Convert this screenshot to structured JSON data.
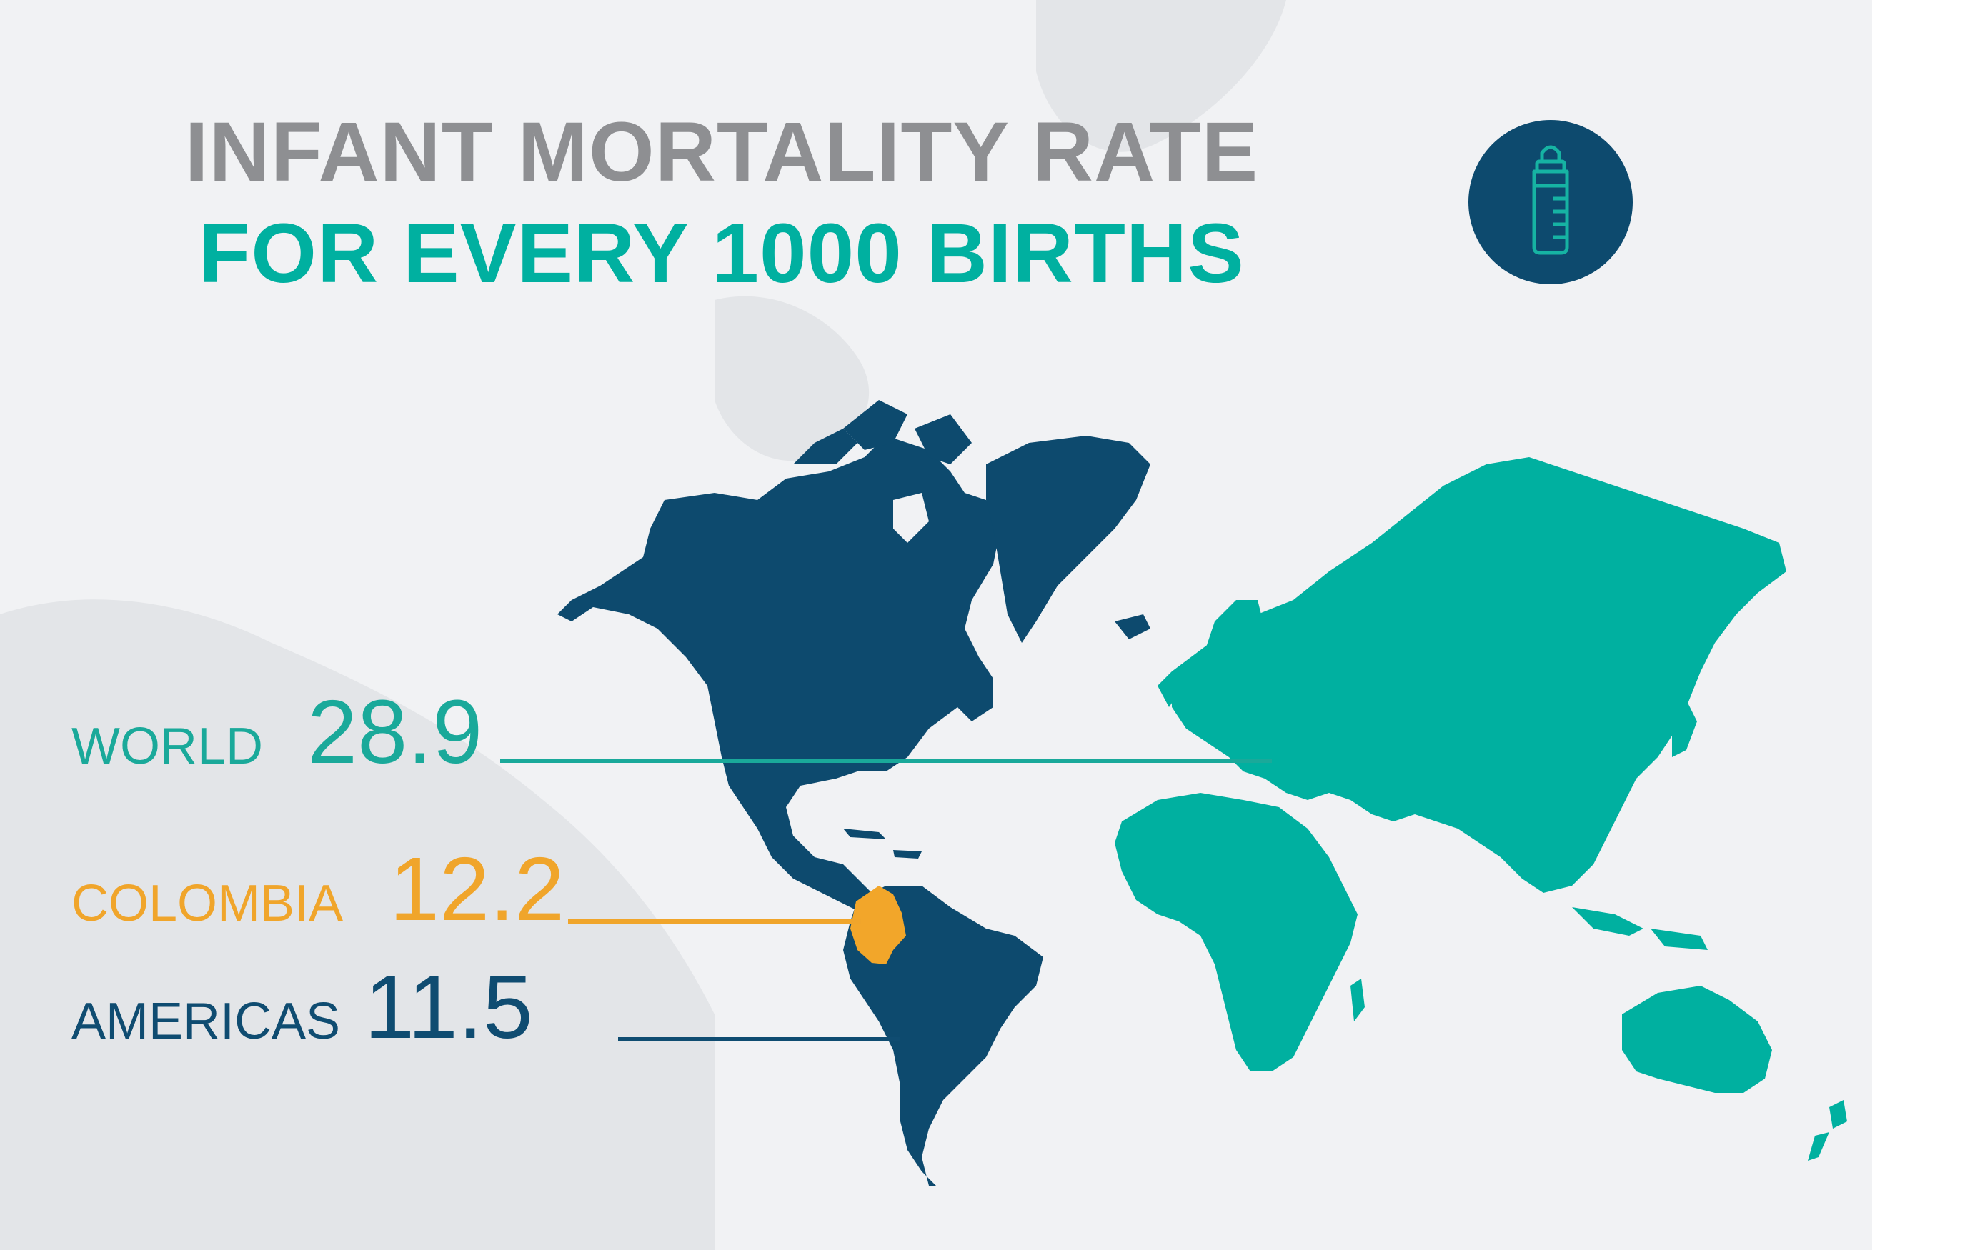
{
  "title": {
    "line1": "INFANT MORTALITY RATE",
    "line2": "FOR EVERY 1000 BIRTHS"
  },
  "icon": {
    "name": "baby-bottle-icon"
  },
  "stats": [
    {
      "label": "WORLD",
      "value": "28.9",
      "color": "#1aa99a"
    },
    {
      "label": "COLOMBIA",
      "value": "12.2",
      "color": "#f0a52b"
    },
    {
      "label": "AMERICAS",
      "value": "11.5",
      "color": "#0f4c71"
    }
  ],
  "colors": {
    "title_gray": "#8e8f92",
    "teal": "#00b0a0",
    "navy": "#0d4a6e",
    "orange": "#f2a62a",
    "background": "#f1f2f4"
  }
}
